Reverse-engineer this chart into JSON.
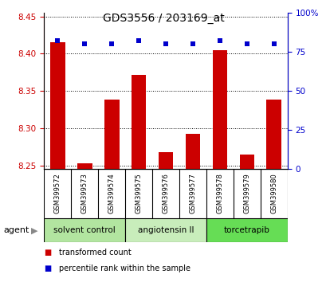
{
  "title": "GDS3556 / 203169_at",
  "categories": [
    "GSM399572",
    "GSM399573",
    "GSM399574",
    "GSM399575",
    "GSM399576",
    "GSM399577",
    "GSM399578",
    "GSM399579",
    "GSM399580"
  ],
  "bar_values": [
    8.415,
    8.253,
    8.338,
    8.372,
    8.268,
    8.292,
    8.405,
    8.265,
    8.338
  ],
  "percentile_values": [
    82,
    80,
    80,
    82,
    80,
    80,
    82,
    80,
    80
  ],
  "bar_color": "#cc0000",
  "percentile_color": "#0000cc",
  "ylim_left": [
    8.245,
    8.455
  ],
  "ylim_right": [
    0,
    100
  ],
  "yticks_left": [
    8.25,
    8.3,
    8.35,
    8.4,
    8.45
  ],
  "yticks_right": [
    0,
    25,
    50,
    75,
    100
  ],
  "ytick_labels_right": [
    "0",
    "25",
    "50",
    "75",
    "100%"
  ],
  "groups": [
    {
      "label": "solvent control",
      "indices": [
        0,
        1,
        2
      ],
      "color": "#b2e5a0"
    },
    {
      "label": "angiotensin II",
      "indices": [
        3,
        4,
        5
      ],
      "color": "#c8edbb"
    },
    {
      "label": "torcetrapib",
      "indices": [
        6,
        7,
        8
      ],
      "color": "#66dd55"
    }
  ],
  "agent_label": "agent",
  "legend_items": [
    {
      "label": "transformed count",
      "color": "#cc0000"
    },
    {
      "label": "percentile rank within the sample",
      "color": "#0000cc"
    }
  ],
  "bar_width": 0.55,
  "background_color": "#ffffff",
  "plot_bg_color": "#ffffff",
  "tick_label_area_color": "#cccccc",
  "title_fontsize": 10
}
